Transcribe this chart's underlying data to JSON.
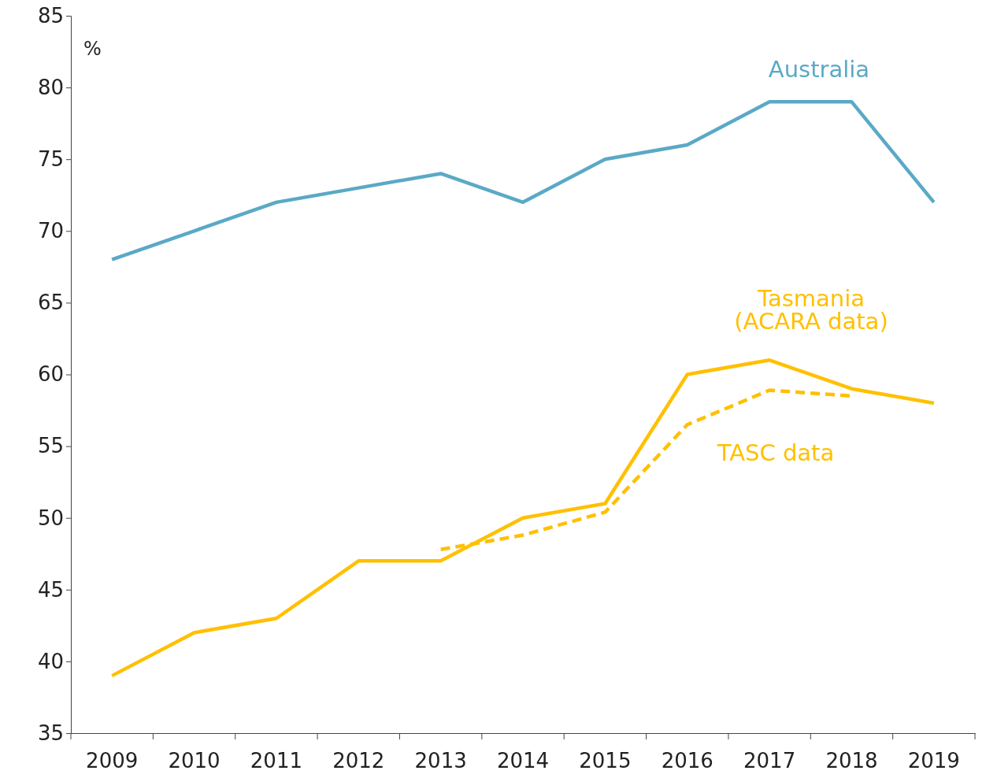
{
  "chart_data": {
    "type": "line",
    "ylabel": "%",
    "categories": [
      "2009",
      "2010",
      "2011",
      "2012",
      "2013",
      "2014",
      "2015",
      "2016",
      "2017",
      "2018",
      "2019"
    ],
    "ylim": [
      35,
      85
    ],
    "yticks": [
      35,
      40,
      45,
      50,
      55,
      60,
      65,
      70,
      75,
      80,
      85
    ],
    "grid": false,
    "marker": "none",
    "series": [
      {
        "name": "Australia",
        "color": "#5aa9c6",
        "line_style": "solid",
        "values": [
          68,
          70,
          72,
          73,
          74,
          72,
          75,
          76,
          79,
          79,
          72
        ]
      },
      {
        "name": "Tasmania\n(ACARA data)",
        "color": "#ffc000",
        "line_style": "solid",
        "values": [
          39,
          42,
          43,
          47,
          47,
          50,
          51,
          60,
          61,
          59,
          58
        ]
      },
      {
        "name": "TASC data",
        "color": "#ffc000",
        "line_style": "dashed",
        "values": [
          null,
          null,
          null,
          null,
          47.8,
          48.8,
          50.4,
          56.5,
          58.9,
          58.5,
          null
        ]
      }
    ]
  }
}
